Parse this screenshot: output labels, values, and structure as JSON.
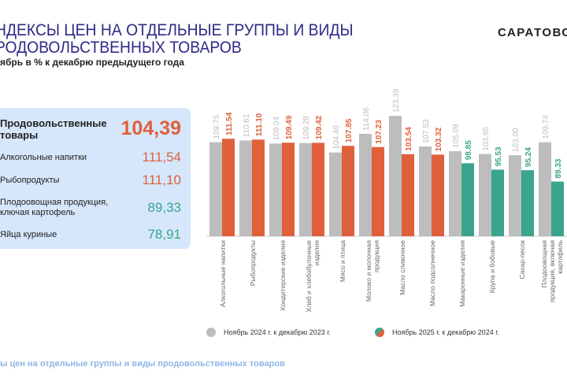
{
  "header": {
    "title_line1": "НДЕКСЫ ЦЕН НА ОТДЕЛЬНЫЕ ГРУППЫ И ВИДЫ",
    "title_line2": "РОДОВОЛЬСТВЕННЫХ ТОВАРОВ",
    "subtitle": "ябрь в % к декабрю предыдущего года",
    "brand": "САРАТОВС"
  },
  "panel": {
    "main": {
      "label": "Продовольственные товары",
      "value": "104,39"
    },
    "items": [
      {
        "label": "Алкогольные напитки",
        "value": "111,54",
        "color": "#e0603c"
      },
      {
        "label": "Рыбопродукты",
        "value": "111,10",
        "color": "#e0603c"
      },
      {
        "label": "Плодоовощная продукция, ключая картофель",
        "value": "89,33",
        "color": "#3aa58c"
      },
      {
        "label": "Яйца куриные",
        "value": "78,91",
        "color": "#3aa58c"
      }
    ]
  },
  "footer": "ы цен на отдельные группы и виды продовольственных товаров",
  "chart_data": {
    "type": "bar",
    "categories": [
      "Алкогольные напитки",
      "Рыбопродукты",
      "Кондитерские изделия",
      "Хлеб и хлебобулочные изделия",
      "Мясо и птица",
      "Молоко и молочная продукция",
      "Масло сливочное",
      "Масло подсолнечное",
      "Макаронные изделия",
      "Крупа и бобовые",
      "Сахар-песок",
      "Плодоовощная продукция, включая картофель"
    ],
    "series": [
      {
        "name": "Ноябрь 2024 г. к декабрю 2023 г.",
        "values": [
          109.75,
          110.61,
          109.04,
          109.28,
          104.4,
          114.06,
          123.39,
          107.53,
          105.09,
          103.65,
          103.0,
          109.74
        ],
        "labels": [
          "109.75",
          "110.61",
          "109.04",
          "109.28",
          "104.40",
          "114.06",
          "123.39",
          "107.53",
          "105.09",
          "103.65",
          "103.00",
          "109.74"
        ],
        "color": "#bdbdbd"
      },
      {
        "name": "Ноябрь 2025 г. к декабрю 2024 г.",
        "values": [
          111.54,
          111.1,
          109.49,
          109.42,
          107.85,
          107.23,
          103.54,
          103.32,
          98.85,
          95.53,
          95.24,
          89.33
        ],
        "labels": [
          "111.54",
          "111.10",
          "109.49",
          "109.42",
          "107.85",
          "107.23",
          "103.54",
          "103.32",
          "98.85",
          "95.53",
          "95.24",
          "89.33"
        ],
        "color_above_100": "#e0603c",
        "color_below_100": "#3aa58c"
      }
    ],
    "legend_placement": "bottom",
    "grid": false
  }
}
